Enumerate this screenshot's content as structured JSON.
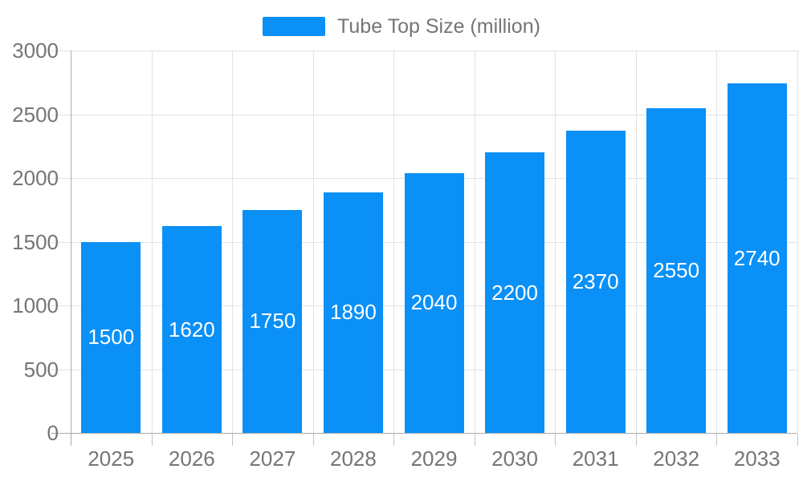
{
  "legend": {
    "label": "Tube Top Size (million)"
  },
  "chart_data": {
    "type": "bar",
    "title": "Tube Top Size (million)",
    "legend_entries": [
      "Tube Top Size (million)"
    ],
    "legend_position": "top-center",
    "categories": [
      "2025",
      "2026",
      "2027",
      "2028",
      "2029",
      "2030",
      "2031",
      "2032",
      "2033"
    ],
    "values": [
      1500,
      1620,
      1750,
      1890,
      2040,
      2200,
      2370,
      2550,
      2740
    ],
    "value_labels_visible": true,
    "value_label_position": "inside-center",
    "xlabel": "",
    "ylabel": "",
    "ylim": [
      0,
      3000
    ],
    "y_ticks": [
      0,
      500,
      1000,
      1500,
      2000,
      2500,
      3000
    ],
    "grid": true
  },
  "colors": {
    "bar": "#0a90f7",
    "grid": "#e2e2e2",
    "axis": "#ababab",
    "tick_text": "#757575",
    "bar_label_text": "#ffffff",
    "background": "#ffffff"
  }
}
